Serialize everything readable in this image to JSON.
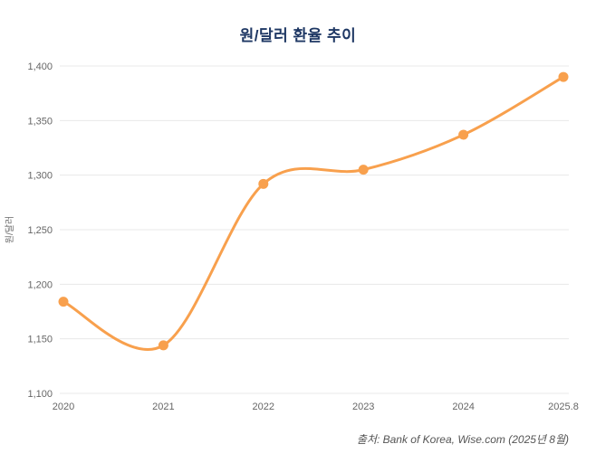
{
  "title": "원/달러 환율 추이",
  "source_caption": "출처: Bank of Korea, Wise.com (2025년 8월)",
  "colors": {
    "line": "#F8A04D",
    "marker": "#F8A04D",
    "title_text": "#1F3864",
    "axis_text": "#666666",
    "grid": "#E8E8E8",
    "source_text": "#555555"
  },
  "chart_data": {
    "type": "line",
    "title": "원/달러 환율 추이",
    "categories": [
      "2020",
      "2021",
      "2022",
      "2023",
      "2024",
      "2025.8"
    ],
    "values": [
      1184,
      1144,
      1292,
      1305,
      1337,
      1390
    ],
    "xlabel": "",
    "ylabel": "원/달러",
    "ylim": [
      1100,
      1400
    ],
    "ytick_step": 50,
    "ytick_labels": [
      "1,100",
      "1,150",
      "1,200",
      "1,250",
      "1,300",
      "1,350",
      "1,400"
    ],
    "grid": true,
    "legend": false,
    "smooth": true,
    "markers": true
  }
}
